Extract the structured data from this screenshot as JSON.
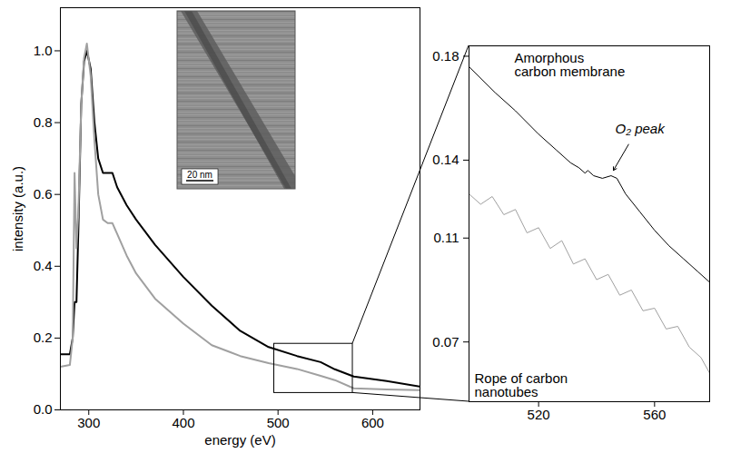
{
  "chart_data": [
    {
      "type": "line",
      "x_label": "energy (eV)",
      "y_label": "intensity (a.u.)",
      "x": [
        270,
        280,
        283,
        285,
        287,
        289,
        292,
        295,
        298,
        302,
        306,
        310,
        315,
        320,
        325,
        330,
        340,
        350,
        370,
        400,
        430,
        460,
        490,
        520,
        545,
        560,
        580,
        615,
        650
      ],
      "series": [
        {
          "color": "#000000",
          "values": [
            0.155,
            0.155,
            0.2,
            0.3,
            0.3,
            0.5,
            0.85,
            0.97,
            1.0,
            0.95,
            0.8,
            0.7,
            0.66,
            0.66,
            0.66,
            0.62,
            0.57,
            0.53,
            0.46,
            0.37,
            0.29,
            0.22,
            0.175,
            0.15,
            0.133,
            0.113,
            0.093,
            0.08,
            0.065
          ]
        },
        {
          "color": "#a0a0a0",
          "values": [
            0.12,
            0.125,
            0.2,
            0.66,
            0.45,
            0.55,
            0.85,
            0.98,
            1.02,
            0.93,
            0.75,
            0.6,
            0.53,
            0.52,
            0.52,
            0.49,
            0.43,
            0.38,
            0.31,
            0.24,
            0.18,
            0.15,
            0.13,
            0.114,
            0.095,
            0.083,
            0.06,
            0.057,
            0.055
          ]
        }
      ],
      "xlim": [
        270,
        650
      ],
      "ylim": [
        0,
        1.12
      ],
      "xticks": [
        300,
        400,
        500,
        600
      ],
      "yticks": [
        {
          "value": 0,
          "label": "0.0"
        },
        0.2,
        0.4,
        0.6,
        0.8,
        {
          "value": 1,
          "label": "1.0"
        }
      ],
      "annotations": [
        {
          "text": "20 nm"
        }
      ]
    },
    {
      "type": "line",
      "series": [
        {
          "name": "Amorphous carbon membrane",
          "color": "#000000",
          "x": [
            496,
            505,
            512,
            520,
            526,
            531,
            534,
            536,
            537,
            539,
            542,
            545,
            547,
            550,
            555,
            560,
            565,
            570,
            575,
            579
          ],
          "values": [
            0.176,
            0.166,
            0.159,
            0.15,
            0.144,
            0.139,
            0.137,
            0.135,
            0.136,
            0.134,
            0.133,
            0.134,
            0.133,
            0.127,
            0.12,
            0.113,
            0.107,
            0.102,
            0.097,
            0.093
          ]
        },
        {
          "name": "Rope of carbon nanotubes",
          "color": "#a0a0a0",
          "x": [
            496,
            500,
            504,
            508,
            512,
            516,
            520,
            524,
            528,
            532,
            536,
            540,
            544,
            548,
            552,
            556,
            560,
            564,
            568,
            572,
            576,
            579
          ],
          "values": [
            0.127,
            0.123,
            0.126,
            0.119,
            0.121,
            0.112,
            0.114,
            0.106,
            0.109,
            0.1,
            0.102,
            0.094,
            0.096,
            0.088,
            0.09,
            0.082,
            0.083,
            0.075,
            0.076,
            0.068,
            0.064,
            0.058
          ]
        }
      ],
      "xlim": [
        496,
        579
      ],
      "ylim": [
        0.047,
        0.184
      ],
      "xticks": [
        520,
        560
      ],
      "yticks": [
        0.07,
        0.11,
        0.14,
        0.18
      ],
      "annotations": [
        {
          "text": "O₂ peak"
        }
      ]
    }
  ]
}
